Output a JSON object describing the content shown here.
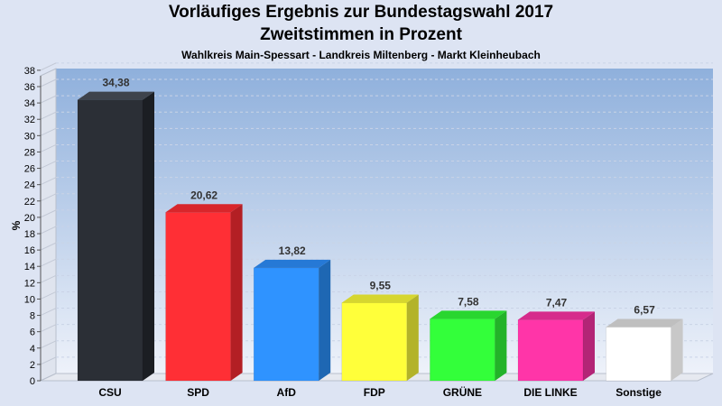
{
  "header": {
    "title": "Vorläufiges Ergebnis zur Bundestagswahl 2017",
    "subtitle": "Zweitstimmen in Prozent",
    "location": "Wahlkreis Main-Spessart - Landkreis Miltenberg - Markt Kleinheubach"
  },
  "chart_data": {
    "type": "bar",
    "title": "Vorläufiges Ergebnis zur Bundestagswahl 2017",
    "subtitle": "Zweitstimmen in Prozent",
    "xlabel": "",
    "ylabel": "%",
    "ylim": [
      0,
      38
    ],
    "ytick_step": 2,
    "grid": true,
    "categories": [
      "CSU",
      "SPD",
      "AfD",
      "FDP",
      "GRÜNE",
      "DIE LINKE",
      "Sonstige"
    ],
    "values": [
      34.38,
      20.62,
      13.82,
      9.55,
      7.58,
      7.47,
      6.57
    ],
    "value_labels": [
      "34,38",
      "20,62",
      "13,82",
      "9,55",
      "7,58",
      "7,47",
      "6,57"
    ],
    "colors": [
      "#2b2f36",
      "#ff2f35",
      "#2f93ff",
      "#ffff3a",
      "#33ff3a",
      "#ff35a8",
      "#ffffff"
    ],
    "side_colors": [
      "#1b1e23",
      "#b31f24",
      "#1e67b3",
      "#b3b329",
      "#23b329",
      "#b32576",
      "#c8c8c8"
    ],
    "top_colors": [
      "#3e434c",
      "#d8262b",
      "#2679d6",
      "#d6d62f",
      "#29d62f",
      "#d62b8c",
      "#bfbfbf"
    ]
  }
}
